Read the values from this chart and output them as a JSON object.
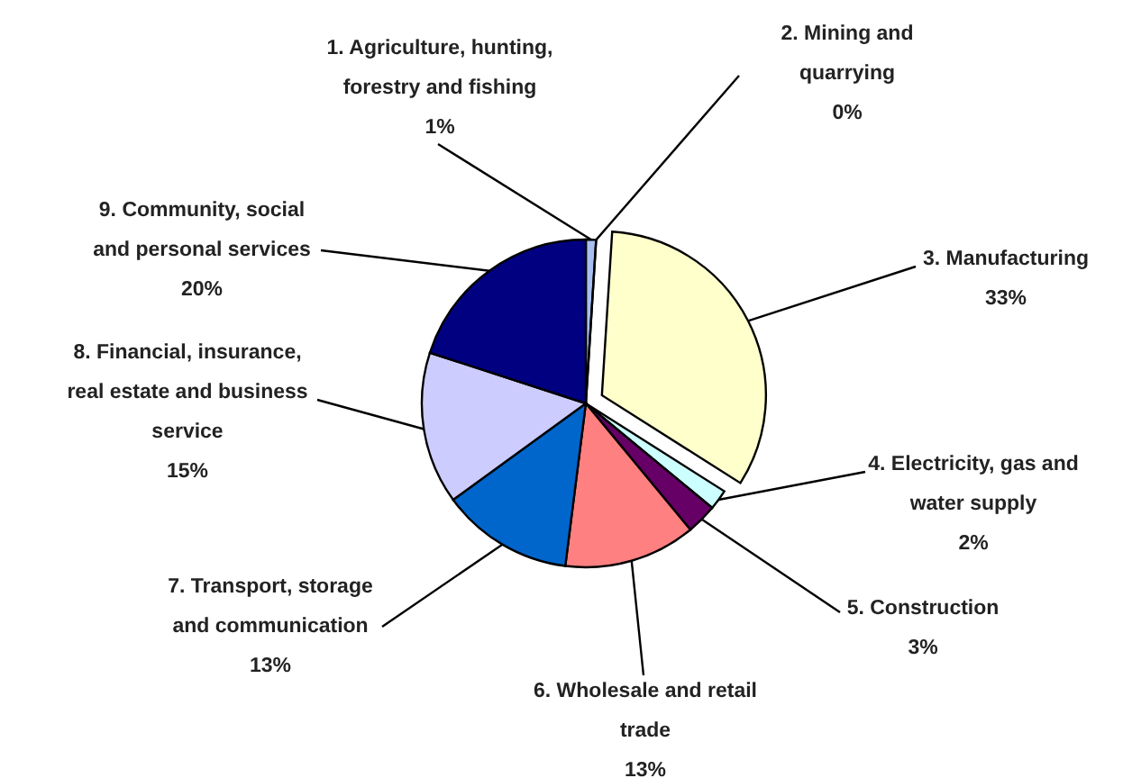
{
  "chart_data": {
    "type": "pie",
    "categories": [
      "1. Agriculture, hunting, forestry and fishing",
      "2. Mining and quarrying",
      "3. Manufacturing",
      "4. Electricity, gas and water supply",
      "5. Construction",
      "6. Wholesale and retail trade",
      "7. Transport, storage and communication",
      "8. Financial, insurance, real estate and business service",
      "9. Community, social and personal services"
    ],
    "values": [
      1,
      0,
      33,
      2,
      3,
      13,
      13,
      15,
      20
    ],
    "colors": [
      "#a9bff0",
      "#993366",
      "#ffffcc",
      "#ccffff",
      "#660066",
      "#ff8080",
      "#0066cc",
      "#ccccff",
      "#000080"
    ],
    "value_labels": [
      "1%",
      "0%",
      "33%",
      "2%",
      "3%",
      "13%",
      "13%",
      "15%",
      "20%"
    ]
  }
}
